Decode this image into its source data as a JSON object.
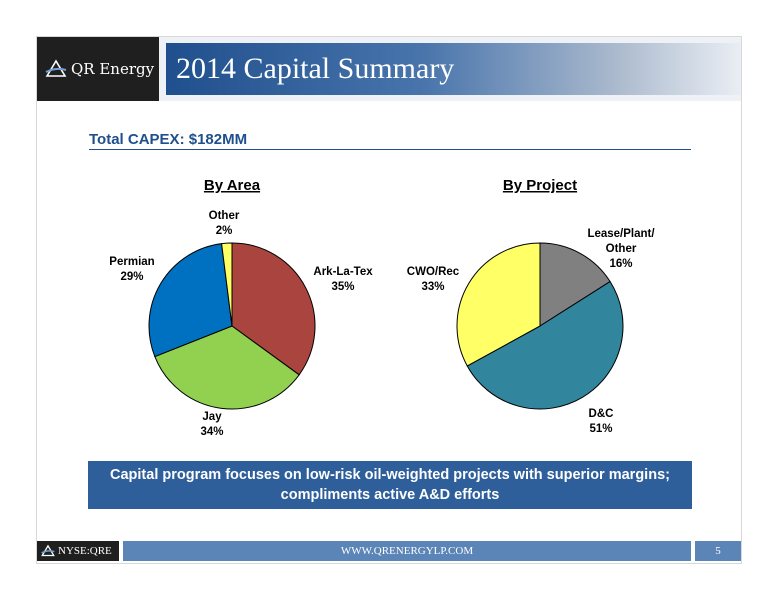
{
  "header": {
    "brand": "QR Energy",
    "title": "2014 Capital Summary"
  },
  "capex_label": "Total CAPEX: $182MM",
  "chart_data": [
    {
      "type": "pie",
      "title": "By Area",
      "slices": [
        {
          "label": "Ark-La-Tex",
          "value": 35,
          "display": "35%",
          "color": "#a9443f"
        },
        {
          "label": "Jay",
          "value": 34,
          "display": "34%",
          "color": "#92d050"
        },
        {
          "label": "Permian",
          "value": 29,
          "display": "29%",
          "color": "#0070c0"
        },
        {
          "label": "Other",
          "value": 2,
          "display": "2%",
          "color": "#ffff66"
        }
      ]
    },
    {
      "type": "pie",
      "title": "By Project",
      "slices": [
        {
          "label": "Lease/Plant/ Other",
          "value": 16,
          "display": "16%",
          "color": "#808080"
        },
        {
          "label": "D&C",
          "value": 51,
          "display": "51%",
          "color": "#31859c"
        },
        {
          "label": "CWO/Rec",
          "value": 33,
          "display": "33%",
          "color": "#ffff66"
        }
      ]
    }
  ],
  "callout": "Capital program focuses on low-risk oil-weighted projects with superior margins; compliments active A&D efforts",
  "footer": {
    "ticker": "NYSE:QRE",
    "url": "WWW.QRENERGYLP.COM",
    "page": "5"
  }
}
